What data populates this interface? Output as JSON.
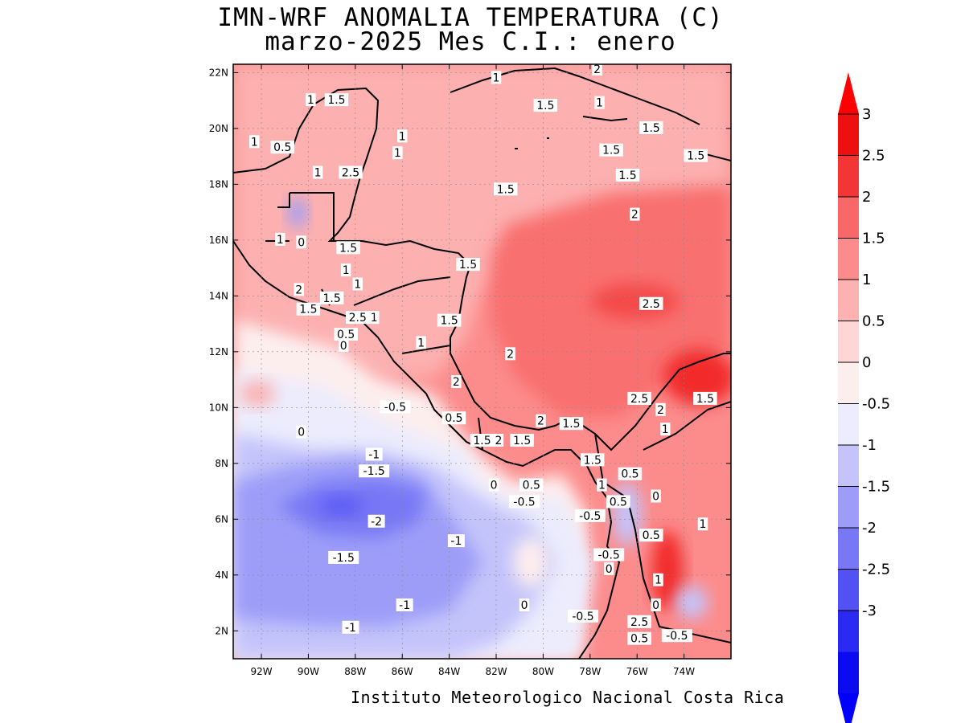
{
  "title": {
    "line1": "IMN-WRF  ANOMALIA TEMPERATURA (C)",
    "line2": "marzo-2025 Mes C.I.: enero"
  },
  "credit": "Instituto Meteorologico Nacional Costa Rica",
  "map": {
    "lon_range": [
      -93.2,
      -72.0
    ],
    "lat_range": [
      1.0,
      22.3
    ],
    "lat_ticks": [
      "22N",
      "20N",
      "18N",
      "16N",
      "14N",
      "12N",
      "10N",
      "8N",
      "6N",
      "4N",
      "2N"
    ],
    "lon_ticks": [
      "92W",
      "90W",
      "88W",
      "86W",
      "84W",
      "82W",
      "80W",
      "78W",
      "76W",
      "74W"
    ],
    "contour_labels": [
      {
        "text": "1",
        "lon": -89.9,
        "lat": 21.0
      },
      {
        "text": "1.5",
        "lon": -88.8,
        "lat": 21.0
      },
      {
        "text": "1",
        "lon": -92.3,
        "lat": 19.5
      },
      {
        "text": "0.5",
        "lon": -91.1,
        "lat": 19.3
      },
      {
        "text": "1",
        "lon": -89.6,
        "lat": 18.4
      },
      {
        "text": "2.5",
        "lon": -88.2,
        "lat": 18.4
      },
      {
        "text": "1",
        "lon": -86.0,
        "lat": 19.7
      },
      {
        "text": "1",
        "lon": -86.2,
        "lat": 19.1
      },
      {
        "text": "1",
        "lon": -82.0,
        "lat": 21.8
      },
      {
        "text": "2",
        "lon": -77.7,
        "lat": 22.1
      },
      {
        "text": "1.5",
        "lon": -79.9,
        "lat": 20.8
      },
      {
        "text": "1",
        "lon": -77.6,
        "lat": 20.9
      },
      {
        "text": "1.5",
        "lon": -75.4,
        "lat": 20.0
      },
      {
        "text": "1.5",
        "lon": -77.1,
        "lat": 19.2
      },
      {
        "text": "1.5",
        "lon": -73.5,
        "lat": 19.0
      },
      {
        "text": "1.5",
        "lon": -76.4,
        "lat": 18.3
      },
      {
        "text": "1.5",
        "lon": -81.6,
        "lat": 17.8
      },
      {
        "text": "2",
        "lon": -76.1,
        "lat": 16.9
      },
      {
        "text": "1",
        "lon": -91.2,
        "lat": 16.0
      },
      {
        "text": "0",
        "lon": -90.3,
        "lat": 15.9
      },
      {
        "text": "1.5",
        "lon": -88.3,
        "lat": 15.7
      },
      {
        "text": "1.5",
        "lon": -83.2,
        "lat": 15.1
      },
      {
        "text": "1",
        "lon": -88.4,
        "lat": 14.9
      },
      {
        "text": "1",
        "lon": -87.9,
        "lat": 14.4
      },
      {
        "text": "2",
        "lon": -90.4,
        "lat": 14.2
      },
      {
        "text": "1.5",
        "lon": -89.0,
        "lat": 13.9
      },
      {
        "text": "1.5",
        "lon": -90.0,
        "lat": 13.5
      },
      {
        "text": "2.5",
        "lon": -87.9,
        "lat": 13.2
      },
      {
        "text": "1",
        "lon": -87.2,
        "lat": 13.2
      },
      {
        "text": "1.5",
        "lon": -84.0,
        "lat": 13.1
      },
      {
        "text": "2.5",
        "lon": -75.4,
        "lat": 13.7
      },
      {
        "text": "0.5",
        "lon": -88.4,
        "lat": 12.6
      },
      {
        "text": "0",
        "lon": -88.5,
        "lat": 12.2
      },
      {
        "text": "1",
        "lon": -85.2,
        "lat": 12.3
      },
      {
        "text": "2",
        "lon": -81.4,
        "lat": 11.9
      },
      {
        "text": "2",
        "lon": -83.7,
        "lat": 10.9
      },
      {
        "text": "2.5",
        "lon": -75.9,
        "lat": 10.3
      },
      {
        "text": "1.5",
        "lon": -73.1,
        "lat": 10.3
      },
      {
        "text": "2",
        "lon": -75.0,
        "lat": 9.9
      },
      {
        "text": "-0.5",
        "lon": -86.3,
        "lat": 10.0
      },
      {
        "text": "0.5",
        "lon": -83.8,
        "lat": 9.6
      },
      {
        "text": "2",
        "lon": -80.1,
        "lat": 9.5
      },
      {
        "text": "1.5",
        "lon": -78.8,
        "lat": 9.4
      },
      {
        "text": "1",
        "lon": -74.8,
        "lat": 9.2
      },
      {
        "text": "0",
        "lon": -90.3,
        "lat": 9.1
      },
      {
        "text": "1.5",
        "lon": -82.6,
        "lat": 8.8
      },
      {
        "text": "2",
        "lon": -81.9,
        "lat": 8.8
      },
      {
        "text": "1.5",
        "lon": -80.9,
        "lat": 8.8
      },
      {
        "text": "-1",
        "lon": -87.2,
        "lat": 8.3
      },
      {
        "text": "1.5",
        "lon": -77.9,
        "lat": 8.1
      },
      {
        "text": "-1.5",
        "lon": -87.2,
        "lat": 7.7
      },
      {
        "text": "0.5",
        "lon": -76.3,
        "lat": 7.6
      },
      {
        "text": "1",
        "lon": -77.5,
        "lat": 7.2
      },
      {
        "text": "0",
        "lon": -82.1,
        "lat": 7.2
      },
      {
        "text": "0.5",
        "lon": -80.5,
        "lat": 7.2
      },
      {
        "text": "0.5",
        "lon": -76.8,
        "lat": 6.6
      },
      {
        "text": "0",
        "lon": -75.2,
        "lat": 6.8
      },
      {
        "text": "-0.5",
        "lon": -80.8,
        "lat": 6.6
      },
      {
        "text": "-0.5",
        "lon": -78.0,
        "lat": 6.1
      },
      {
        "text": "-2",
        "lon": -87.1,
        "lat": 5.9
      },
      {
        "text": "1",
        "lon": -73.2,
        "lat": 5.8
      },
      {
        "text": "0.5",
        "lon": -75.4,
        "lat": 5.4
      },
      {
        "text": "-1",
        "lon": -83.7,
        "lat": 5.2
      },
      {
        "text": "-0.5",
        "lon": -77.2,
        "lat": 4.7
      },
      {
        "text": "-1.5",
        "lon": -88.5,
        "lat": 4.6
      },
      {
        "text": "0",
        "lon": -77.2,
        "lat": 4.2
      },
      {
        "text": "1",
        "lon": -75.1,
        "lat": 3.8
      },
      {
        "text": "0",
        "lon": -80.8,
        "lat": 2.9
      },
      {
        "text": "-1",
        "lon": -85.9,
        "lat": 2.9
      },
      {
        "text": "0",
        "lon": -75.2,
        "lat": 2.9
      },
      {
        "text": "-0.5",
        "lon": -78.3,
        "lat": 2.5
      },
      {
        "text": "2.5",
        "lon": -75.9,
        "lat": 2.3
      },
      {
        "text": "-1",
        "lon": -88.2,
        "lat": 2.1
      },
      {
        "text": "0.5",
        "lon": -75.9,
        "lat": 1.7
      },
      {
        "text": "-0.5",
        "lon": -74.3,
        "lat": 1.8
      }
    ]
  },
  "colorbar": {
    "labels": [
      "3",
      "2.5",
      "2",
      "1.5",
      "1",
      "0.5",
      "0",
      "-0.5",
      "-1",
      "-1.5",
      "-2",
      "-2.5",
      "-3"
    ],
    "colors": [
      "#ee1010",
      "#f43535",
      "#f96868",
      "#fc8c8c",
      "#fdb1b1",
      "#fed6d6",
      "#fdeeee",
      "#ececfd",
      "#c4c4fb",
      "#9d9df8",
      "#7878f6",
      "#5151f4",
      "#2a2af2",
      "#0b0bf0"
    ],
    "top_arrow_color": "#ff0000",
    "bottom_arrow_color": "#0000ff"
  }
}
